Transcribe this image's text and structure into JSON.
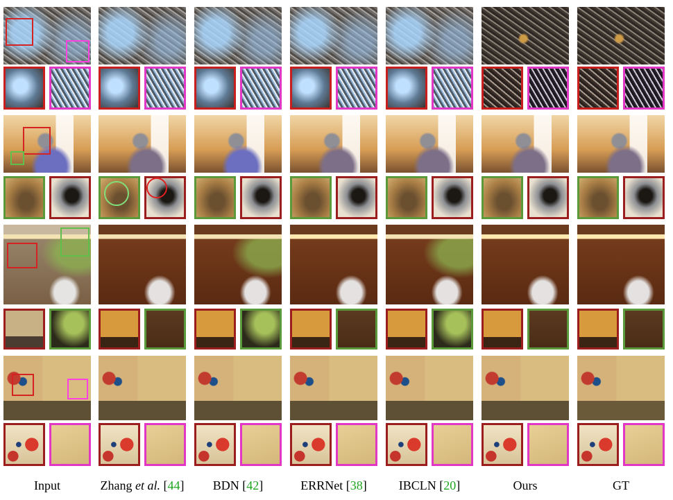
{
  "columns": [
    {
      "label": "Input",
      "pre": "Input",
      "italic": "",
      "mid": "",
      "ref": ""
    },
    {
      "label": "Zhang et al. [44]",
      "pre": "Zhang ",
      "italic": "et al.",
      "mid": " [",
      "ref": "44"
    },
    {
      "label": "BDN [42]",
      "pre": "BDN [",
      "italic": "",
      "mid": "",
      "ref": "42"
    },
    {
      "label": "ERRNet [38]",
      "pre": "ERRNet [",
      "italic": "",
      "mid": "",
      "ref": "38"
    },
    {
      "label": "IBCLN [20]",
      "pre": "IBCLN [",
      "italic": "",
      "mid": "",
      "ref": "20"
    },
    {
      "label": "Ours",
      "pre": "Ours",
      "italic": "",
      "mid": "",
      "ref": ""
    },
    {
      "label": "GT",
      "pre": "GT",
      "italic": "",
      "mid": "",
      "ref": ""
    }
  ],
  "colors": {
    "crop_red": "#c81e1e",
    "crop_pink": "#e236c4",
    "crop_green": "#5a9a3a",
    "reference_number": "#1ea51e"
  },
  "scenes": [
    {
      "name": "dry-grass-and-leaf",
      "crops": [
        "red",
        "pink"
      ]
    },
    {
      "name": "kitchen-utensil-holder",
      "crops": [
        "green",
        "red"
      ]
    },
    {
      "name": "cafe-with-bicycle",
      "crops": [
        "red",
        "green"
      ]
    },
    {
      "name": "poster-wall",
      "crops": [
        "red",
        "pink"
      ]
    }
  ]
}
